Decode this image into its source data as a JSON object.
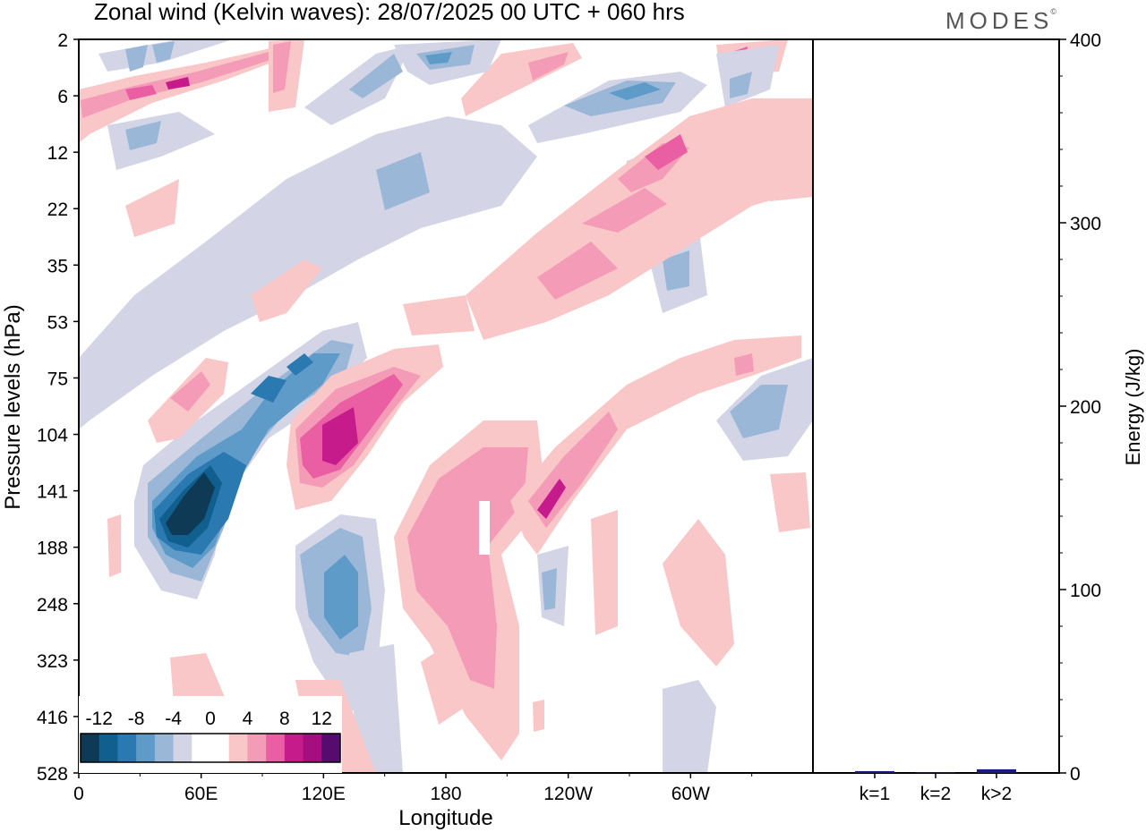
{
  "header": {
    "title": "Zonal wind (Kelvin waves):  28/07/2025  00 UTC  + 060 hrs",
    "brand": "MODES",
    "brand_mark": "©"
  },
  "chart_data": [
    {
      "type": "contour",
      "xlabel": "Longitude",
      "ylabel": "Pressure levels (hPa)",
      "x_ticks": [
        "0",
        "60E",
        "120E",
        "180",
        "120W",
        "60W"
      ],
      "y_ticks": [
        "2",
        "6",
        "12",
        "22",
        "35",
        "53",
        "75",
        "104",
        "141",
        "188",
        "248",
        "323",
        "416",
        "528"
      ],
      "colorbar": {
        "levels": [
          -12,
          -10,
          -8,
          -6,
          -4,
          -2,
          0,
          2,
          4,
          6,
          8,
          10,
          12
        ],
        "labels": [
          "-12",
          "-8",
          "-4",
          "0",
          "4",
          "8",
          "12"
        ],
        "colors": [
          "#0e3a55",
          "#105f8f",
          "#2a79b1",
          "#5f9bc9",
          "#9bb7d8",
          "#d3d5e6",
          "#ffffff",
          "#ffffff",
          "#f9c7c7",
          "#f49bb7",
          "#ea5ea3",
          "#c61b8a",
          "#a50e7e",
          "#560c6f"
        ]
      },
      "features": [
        {
          "kind": "stratospheric positive band",
          "lon": [
            0,
            110
          ],
          "level": 6,
          "max_value": 8
        },
        {
          "kind": "upper-level negative streak",
          "lon": [
            130,
            280
          ],
          "level": 6,
          "max_value": -6
        },
        {
          "kind": "upper-level negative streak",
          "lon": [
            50,
            110
          ],
          "level": 12,
          "max_value": -4
        },
        {
          "kind": "diagonal positive band",
          "lon": [
            190,
            310
          ],
          "level": 22,
          "max_value": 6
        },
        {
          "kind": "broad negative band",
          "lon": [
            25,
            120
          ],
          "level": 53,
          "max_value": -4
        },
        {
          "kind": "tilted negative core",
          "lon": [
            20,
            120
          ],
          "level": 141,
          "max_value": -13
        },
        {
          "kind": "tilted positive core",
          "lon": [
            125,
            150
          ],
          "level": 104,
          "max_value": 10
        },
        {
          "kind": "lower negative core",
          "lon": [
            115,
            130
          ],
          "level": 248,
          "max_value": -8
        },
        {
          "kind": "positive plume",
          "lon": [
            175,
            200
          ],
          "level": 188,
          "max_value": 6
        },
        {
          "kind": "positive streak",
          "lon": [
            225,
            255
          ],
          "level": 141,
          "max_value": 8
        },
        {
          "kind": "negative patch",
          "lon": [
            320,
            345
          ],
          "level": 104,
          "max_value": -6
        },
        {
          "kind": "low-level positive patch",
          "lon": [
            240,
            290
          ],
          "level": 248,
          "max_value": 4
        },
        {
          "kind": "low-level negative patch",
          "lon": [
            265,
            290
          ],
          "level": 416,
          "max_value": -4
        }
      ]
    },
    {
      "type": "bar",
      "categories": [
        "k=1",
        "k=2",
        "k>2"
      ],
      "values": [
        1,
        0.4,
        2
      ],
      "ylabel": "Energy (J/kg)",
      "ylim": [
        0,
        400
      ],
      "y_ticks": [
        "0",
        "100",
        "200",
        "300",
        "400"
      ],
      "bar_color": "#1a1a80"
    }
  ]
}
